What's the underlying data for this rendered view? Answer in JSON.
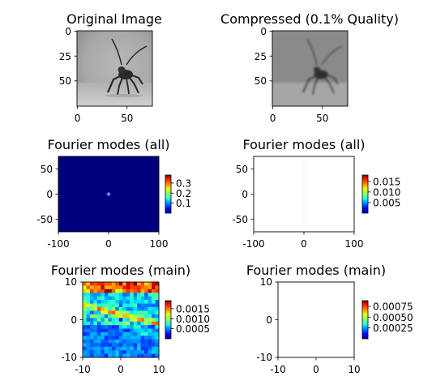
{
  "figure": {
    "background": "#ffffff"
  },
  "chart_data": [
    {
      "id": "orig",
      "type": "image",
      "title": "Original Image",
      "content": "grayscale photo of an insect with long antennae on a blurred light gray background",
      "xticks": [
        0,
        50
      ],
      "yticks": [
        0,
        25,
        50
      ],
      "xlim": [
        0,
        76
      ],
      "ylim": [
        76,
        0
      ]
    },
    {
      "id": "comp",
      "type": "image",
      "title": "Compressed (0.1% Quality)",
      "content": "blurred grayscale reconstruction of the same insect photo",
      "xticks": [
        0,
        50
      ],
      "yticks": [
        0,
        25,
        50
      ],
      "xlim": [
        0,
        76
      ],
      "ylim": [
        76,
        0
      ]
    },
    {
      "id": "f_all",
      "type": "heatmap",
      "title": "Fourier modes (all)",
      "colormap": "jet",
      "description": "almost entirely low values (dark blue), single bright spike at the origin",
      "xticks": [
        -100,
        0,
        100
      ],
      "yticks": [
        -50,
        0,
        50
      ],
      "xlim": [
        -100,
        100
      ],
      "ylim": [
        -74,
        74
      ],
      "colorbar_ticks": [
        "0.1",
        "0.2",
        "0.3"
      ],
      "colorbar_range": [
        0.0,
        0.38
      ]
    },
    {
      "id": "f_all_c",
      "type": "heatmap",
      "title": "Fourier modes (all)",
      "colormap": "jet",
      "description": "almost entirely zero (renders white), faint vertical line at x = 0",
      "xticks": [
        -100,
        0,
        100
      ],
      "yticks": [
        -50,
        0,
        50
      ],
      "xlim": [
        -100,
        100
      ],
      "ylim": [
        -74,
        74
      ],
      "colorbar_ticks": [
        "0.005",
        "0.010",
        "0.015"
      ],
      "colorbar_range": [
        0.0,
        0.018
      ]
    },
    {
      "id": "f_main",
      "type": "heatmap",
      "title": "Fourier modes (main)",
      "colormap": "jet",
      "description": "21x21 grid of central Fourier modes, mostly blue/cyan with diagonal yellow-orange bands",
      "xticks": [
        -10,
        0,
        10
      ],
      "yticks": [
        -10,
        0,
        10
      ],
      "xlim": [
        -10,
        10
      ],
      "ylim": [
        -10,
        10
      ],
      "colorbar_ticks": [
        "0.0005",
        "0.0010",
        "0.0015"
      ],
      "colorbar_range": [
        0.0,
        0.0019
      ]
    },
    {
      "id": "f_main_c",
      "type": "heatmap",
      "title": "Fourier modes (main)",
      "colormap": "jet",
      "description": "central Fourier modes after compression: essentially all zero (renders white)",
      "xticks": [
        -10,
        0,
        10
      ],
      "yticks": [
        -10,
        0,
        10
      ],
      "xlim": [
        -10,
        10
      ],
      "ylim": [
        -10,
        10
      ],
      "colorbar_ticks": [
        "0.00025",
        "0.00050",
        "0.00075"
      ],
      "colorbar_range": [
        0.0,
        0.00088
      ]
    }
  ]
}
